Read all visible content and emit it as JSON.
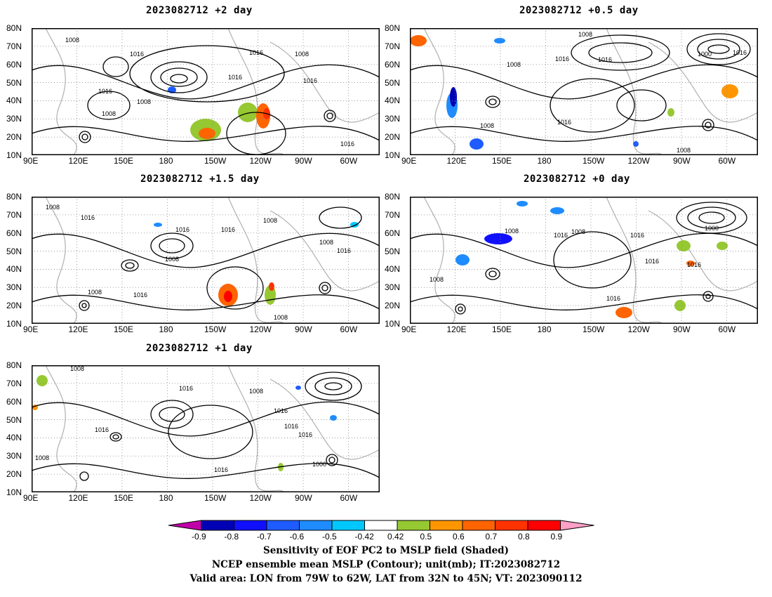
{
  "panels": [
    {
      "title": "2023082712 +2 day"
    },
    {
      "title": "2023082712 +0.5 day"
    },
    {
      "title": "2023082712 +1.5 day"
    },
    {
      "title": "2023082712 +0 day"
    },
    {
      "title": "2023082712 +1 day"
    }
  ],
  "lat_ticks": [
    "80N",
    "70N",
    "60N",
    "50N",
    "40N",
    "30N",
    "20N",
    "10N"
  ],
  "lon_ticks": [
    "90E",
    "120E",
    "150E",
    "180",
    "150W",
    "120W",
    "90W",
    "60W"
  ],
  "contour_labels": [
    "1008",
    "1016",
    "1000"
  ],
  "colorbar": {
    "labels": [
      "-0.9",
      "-0.8",
      "-0.7",
      "-0.6",
      "-0.5",
      "-0.42",
      "0.42",
      "0.5",
      "0.6",
      "0.7",
      "0.8",
      "0.9"
    ],
    "colors": [
      "#c000a8",
      "#0000b4",
      "#1010ff",
      "#1f5cff",
      "#1e8cff",
      "#00c8ff",
      "#ffffff",
      "#96c832",
      "#ff9600",
      "#ff6400",
      "#ff3200",
      "#ff0000",
      "#ffa0c8"
    ]
  },
  "footer": {
    "line1": "Sensitivity of EOF PC2 to MSLP field (Shaded)",
    "line2": "NCEP ensemble mean MSLP (Contour); unit(mb); IT:2023082712",
    "line3": "Valid area: LON from 79W to 62W, LAT from 32N to 45N; VT: 2023090112"
  }
}
